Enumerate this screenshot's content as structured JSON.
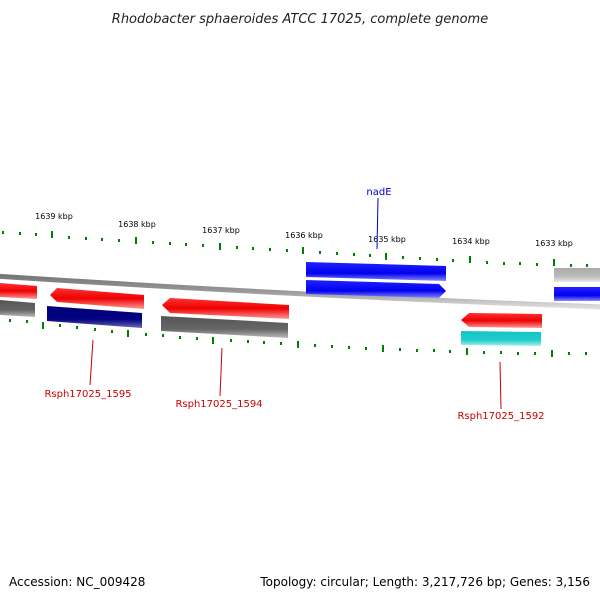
{
  "title": "Rhodobacter sphaeroides ATCC 17025, complete genome",
  "accession": "Accession: NC_009428",
  "summary": "Topology: circular; Length: 3,217,726 bp; Genes: 3,156",
  "ticks": [
    {
      "label": "1639 kbp"
    },
    {
      "label": "1638 kbp"
    },
    {
      "label": "1637 kbp"
    },
    {
      "label": "1636 kbp"
    },
    {
      "label": "1635 kbp"
    },
    {
      "label": "1634 kbp"
    },
    {
      "label": "1633 kbp"
    }
  ],
  "gene_labels": [
    {
      "text": "nadE",
      "color": "#0000cc"
    },
    {
      "text": "Rsph17025_1595",
      "color": "#cc0000"
    },
    {
      "text": "Rsph17025_1594",
      "color": "#cc0000"
    },
    {
      "text": "Rsph17025_1592",
      "color": "#cc0000"
    }
  ],
  "colors": {
    "cds_red": "#ff0000",
    "cds_blue": "#0000ff",
    "cds_navy": "#000080",
    "cds_gray": "#666666",
    "cds_lightgray": "#bbbbbb",
    "cds_cyan": "#22cccc",
    "tick_green": "#008000",
    "backbone": "#888888"
  }
}
